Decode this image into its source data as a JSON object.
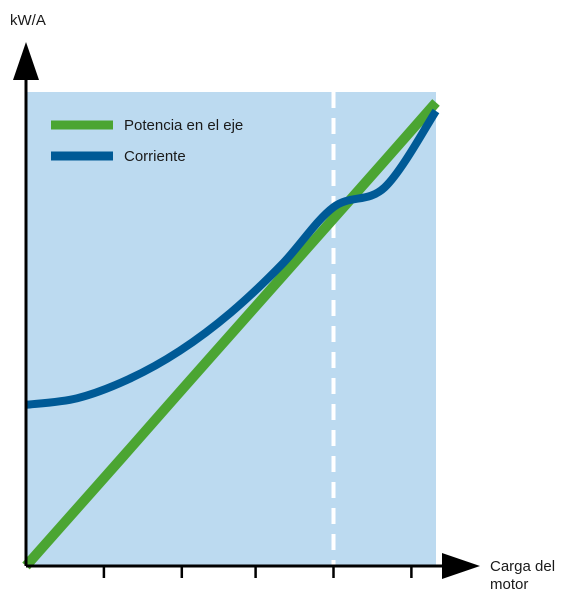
{
  "chart_data": {
    "type": "line",
    "ylabel": "kW/A",
    "xlabel_lines": [
      "Carga del",
      "motor"
    ],
    "x": [
      0,
      0.125,
      0.25,
      0.375,
      0.5,
      0.625,
      0.75,
      0.875,
      1.0
    ],
    "xlim": [
      0,
      1
    ],
    "ylim": [
      0,
      1
    ],
    "x_ticks": [
      0.19,
      0.38,
      0.56,
      0.75,
      0.94
    ],
    "marker_line_x": 0.75,
    "legend_position": "top-left",
    "grid": false,
    "series": [
      {
        "name": "Potencia en el eje",
        "color": "#4ba532",
        "values": [
          0.0,
          0.122,
          0.244,
          0.367,
          0.489,
          0.611,
          0.733,
          0.855,
          0.978
        ]
      },
      {
        "name": "Corriente",
        "color": "#005a96",
        "values": [
          0.34,
          0.354,
          0.394,
          0.454,
          0.535,
          0.637,
          0.757,
          0.799,
          0.96
        ]
      }
    ],
    "colors": {
      "plot_background": "#bcdaf0",
      "axis": "#000000",
      "marker_line": "#ffffff"
    }
  }
}
